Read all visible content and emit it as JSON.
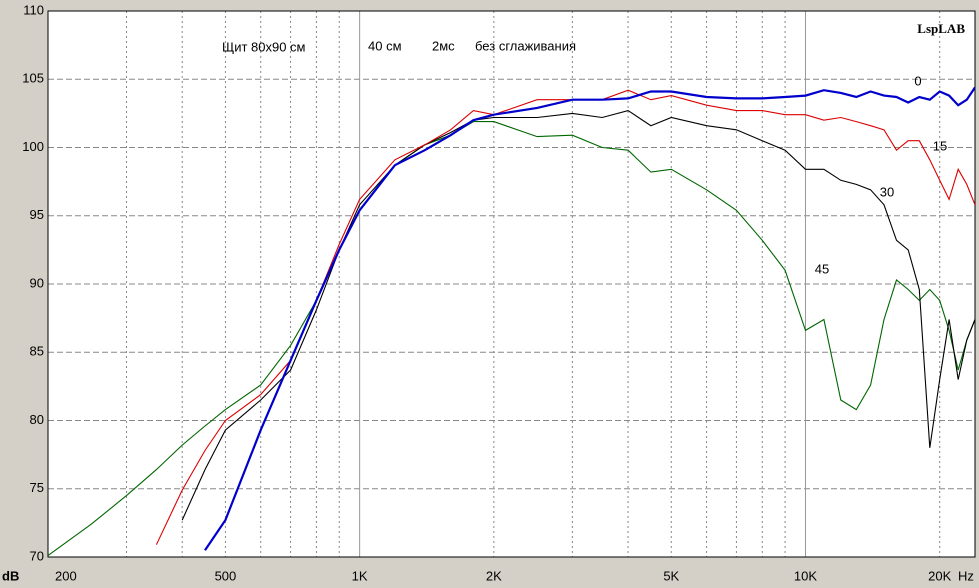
{
  "chart_data": {
    "type": "line",
    "title": "LspLAB",
    "annotations": [
      "Щит 80x90 см",
      "40 см",
      "2мс",
      "без сглаживания"
    ],
    "x_label": "Hz",
    "y_label": "dB",
    "x_log": true,
    "grid": true,
    "x": [
      200,
      250,
      300,
      350,
      400,
      450,
      500,
      600,
      700,
      800,
      900,
      1000,
      1200,
      1400,
      1600,
      1800,
      2000,
      2500,
      3000,
      3500,
      4000,
      4500,
      5000,
      6000,
      7000,
      8000,
      9000,
      10000,
      11000,
      12000,
      13000,
      14000,
      15000,
      16000,
      17000,
      18000,
      19000,
      20000,
      21000,
      22000,
      23000,
      24000
    ],
    "series": [
      {
        "name": "0",
        "color": "#0000cc",
        "values": [
          null,
          null,
          null,
          null,
          null,
          70.5,
          72.7,
          79.3,
          84.4,
          88.8,
          92.5,
          95.4,
          98.7,
          99.8,
          100.9,
          102.0,
          102.4,
          102.9,
          103.5,
          103.5,
          103.6,
          104.1,
          104.1,
          103.7,
          103.6,
          103.6,
          103.7,
          103.8,
          104.2,
          104.0,
          103.7,
          104.1,
          103.8,
          103.7,
          103.3,
          103.7,
          103.5,
          104.1,
          103.8,
          103.1,
          103.5,
          104.4
        ]
      },
      {
        "name": "15",
        "color": "#dd0000",
        "values": [
          null,
          null,
          null,
          70.9,
          74.9,
          77.8,
          80.0,
          81.9,
          84.4,
          88.8,
          92.9,
          96.2,
          99.1,
          100.2,
          101.3,
          102.7,
          102.4,
          103.5,
          103.5,
          103.5,
          104.2,
          103.5,
          103.8,
          103.1,
          102.7,
          102.7,
          102.4,
          102.4,
          102.0,
          102.2,
          101.9,
          101.6,
          101.3,
          99.8,
          100.5,
          100.5,
          99.1,
          97.6,
          96.2,
          98.4,
          97.3,
          95.8
        ]
      },
      {
        "name": "30",
        "color": "#000000",
        "values": [
          null,
          null,
          null,
          null,
          72.7,
          76.4,
          79.3,
          81.5,
          83.7,
          88.1,
          92.5,
          95.8,
          98.7,
          100.2,
          101.1,
          102.0,
          102.2,
          102.2,
          102.5,
          102.2,
          102.7,
          101.6,
          102.2,
          101.6,
          101.3,
          100.5,
          99.8,
          98.4,
          98.4,
          97.6,
          97.3,
          96.9,
          95.8,
          93.2,
          92.5,
          89.6,
          78.0,
          83.0,
          87.4,
          83.0,
          85.9,
          87.4
        ]
      },
      {
        "name": "45",
        "color": "#006600",
        "values": [
          70.1,
          72.4,
          74.5,
          76.4,
          78.2,
          79.6,
          80.8,
          82.6,
          85.5,
          88.8,
          92.5,
          95.4,
          98.7,
          100.2,
          100.9,
          101.9,
          101.9,
          100.8,
          100.9,
          100.0,
          99.8,
          98.2,
          98.4,
          96.9,
          95.4,
          93.2,
          91.0,
          86.6,
          87.4,
          81.5,
          80.8,
          82.6,
          87.4,
          90.3,
          89.6,
          88.8,
          89.6,
          88.8,
          86.6,
          83.7,
          85.9,
          87.4
        ]
      }
    ],
    "xlim": [
      200,
      24000
    ],
    "xticks": [
      200,
      500,
      {
        "value": 1000,
        "label": "1K"
      },
      {
        "value": 2000,
        "label": "2K"
      },
      {
        "value": 5000,
        "label": "5K"
      },
      {
        "value": 10000,
        "label": "10K"
      },
      {
        "value": 20000,
        "label": "20K"
      }
    ],
    "xminor": [
      300,
      400,
      600,
      700,
      800,
      900,
      3000,
      4000,
      6000,
      7000,
      8000,
      9000
    ],
    "ylim": [
      70,
      110
    ],
    "yticks": [
      70,
      75,
      80,
      85,
      90,
      95,
      100,
      105,
      110
    ]
  }
}
